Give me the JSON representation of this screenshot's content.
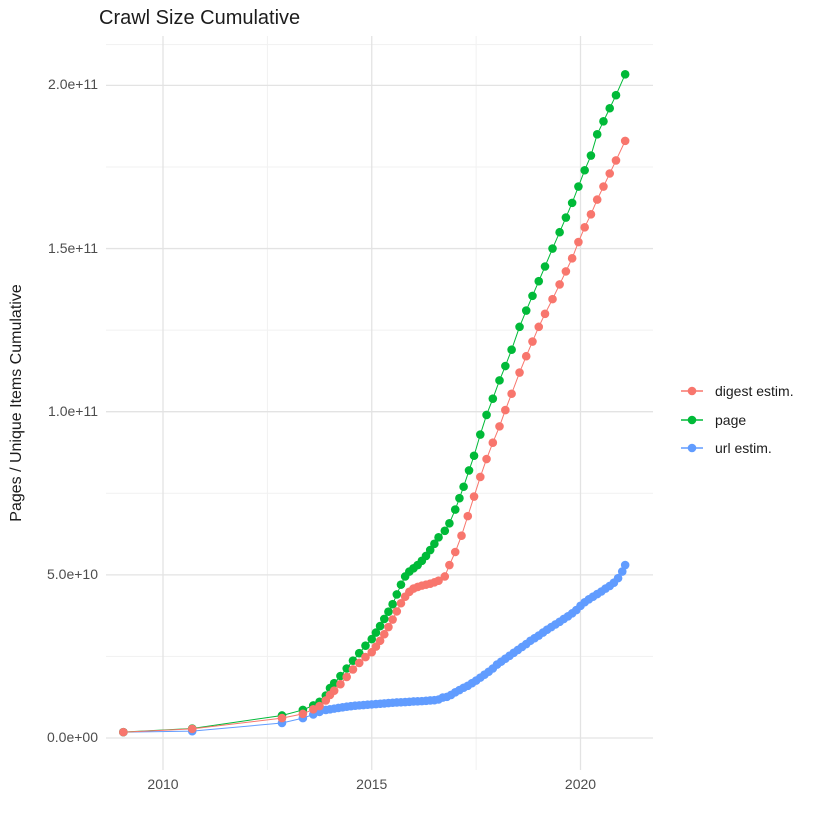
{
  "title": "Crawl Size Cumulative",
  "y_axis_title": "Pages / Unique Items Cumulative",
  "axes": {
    "x": {
      "major_ticks": [
        {
          "value": 2010,
          "label": "2010"
        },
        {
          "value": 2015,
          "label": "2015"
        },
        {
          "value": 2020,
          "label": "2020"
        }
      ],
      "minor_ticks": [
        2012.5,
        2017.5
      ]
    },
    "y": {
      "major_ticks": [
        {
          "value": 0,
          "label": "0.0e+00"
        },
        {
          "value": 50,
          "label": "5.0e+10"
        },
        {
          "value": 100,
          "label": "1.0e+11"
        },
        {
          "value": 150,
          "label": "1.5e+11"
        },
        {
          "value": 200,
          "label": "2.0e+11"
        }
      ],
      "minor_ticks": [
        25,
        75,
        125,
        175,
        212.5
      ]
    }
  },
  "legend": {
    "position": "right",
    "items": [
      "digest estim.",
      "page",
      "url estim."
    ]
  },
  "chart_data": {
    "type": "scatter",
    "title": "Crawl Size Cumulative",
    "xlabel": "",
    "ylabel": "Pages / Unique Items Cumulative",
    "x_unit": "year",
    "y_unit": "items (billions, 1e9)",
    "xlim": [
      2008.5,
      2021.7
    ],
    "ylim": [
      0,
      215
    ],
    "grid": true,
    "series": [
      {
        "id": "digest-estim",
        "name": "digest estim.",
        "color": "#F8766D",
        "points": [
          [
            2009.05,
            1.8
          ],
          [
            2010.7,
            2.8
          ],
          [
            2012.85,
            6.1
          ],
          [
            2013.35,
            7.4
          ],
          [
            2013.6,
            8.8
          ],
          [
            2013.75,
            9.8
          ],
          [
            2013.9,
            11.5
          ],
          [
            2014.0,
            13.2
          ],
          [
            2014.1,
            14.5
          ],
          [
            2014.25,
            16.5
          ],
          [
            2014.4,
            18.7
          ],
          [
            2014.55,
            21
          ],
          [
            2014.7,
            23
          ],
          [
            2014.85,
            24.8
          ],
          [
            2015.0,
            26.3
          ],
          [
            2015.1,
            28
          ],
          [
            2015.2,
            29.8
          ],
          [
            2015.3,
            31.8
          ],
          [
            2015.4,
            34
          ],
          [
            2015.5,
            36.3
          ],
          [
            2015.6,
            38.8
          ],
          [
            2015.7,
            41.3
          ],
          [
            2015.8,
            43.3
          ],
          [
            2015.9,
            44.8
          ],
          [
            2016.0,
            45.8
          ],
          [
            2016.1,
            46.3
          ],
          [
            2016.2,
            46.7
          ],
          [
            2016.3,
            47
          ],
          [
            2016.4,
            47.3
          ],
          [
            2016.5,
            47.7
          ],
          [
            2016.6,
            48.2
          ],
          [
            2016.75,
            49.5
          ],
          [
            2016.86,
            53
          ],
          [
            2017.0,
            57
          ],
          [
            2017.15,
            62
          ],
          [
            2017.3,
            68
          ],
          [
            2017.45,
            74
          ],
          [
            2017.6,
            80
          ],
          [
            2017.75,
            85.5
          ],
          [
            2017.9,
            90.5
          ],
          [
            2018.06,
            95.5
          ],
          [
            2018.2,
            100.5
          ],
          [
            2018.35,
            105.5
          ],
          [
            2018.54,
            112
          ],
          [
            2018.7,
            117
          ],
          [
            2018.85,
            121.5
          ],
          [
            2019.0,
            126
          ],
          [
            2019.15,
            130
          ],
          [
            2019.33,
            134.5
          ],
          [
            2019.5,
            139
          ],
          [
            2019.65,
            143
          ],
          [
            2019.8,
            147
          ],
          [
            2019.95,
            152
          ],
          [
            2020.1,
            156.5
          ],
          [
            2020.25,
            160.5
          ],
          [
            2020.4,
            165
          ],
          [
            2020.55,
            169
          ],
          [
            2020.7,
            173
          ],
          [
            2020.85,
            177
          ],
          [
            2021.07,
            183
          ]
        ]
      },
      {
        "id": "page",
        "name": "page",
        "color": "#00BA38",
        "points": [
          [
            2009.05,
            1.8
          ],
          [
            2010.7,
            2.9
          ],
          [
            2012.85,
            6.9
          ],
          [
            2013.35,
            8.6
          ],
          [
            2013.6,
            10
          ],
          [
            2013.75,
            11.1
          ],
          [
            2013.9,
            13
          ],
          [
            2014.0,
            15.3
          ],
          [
            2014.1,
            16.8
          ],
          [
            2014.25,
            19
          ],
          [
            2014.4,
            21.3
          ],
          [
            2014.55,
            23.7
          ],
          [
            2014.7,
            26
          ],
          [
            2014.85,
            28.3
          ],
          [
            2015.0,
            30.3
          ],
          [
            2015.1,
            32.3
          ],
          [
            2015.2,
            34.3
          ],
          [
            2015.3,
            36.5
          ],
          [
            2015.4,
            38.7
          ],
          [
            2015.5,
            41
          ],
          [
            2015.6,
            44
          ],
          [
            2015.7,
            47
          ],
          [
            2015.8,
            49.5
          ],
          [
            2015.9,
            51
          ],
          [
            2016.0,
            52
          ],
          [
            2016.1,
            53
          ],
          [
            2016.2,
            54.3
          ],
          [
            2016.3,
            55.8
          ],
          [
            2016.4,
            57.6
          ],
          [
            2016.5,
            59.5
          ],
          [
            2016.6,
            61.5
          ],
          [
            2016.75,
            63.5
          ],
          [
            2016.86,
            65.8
          ],
          [
            2017.0,
            70
          ],
          [
            2017.1,
            73.5
          ],
          [
            2017.2,
            77
          ],
          [
            2017.33,
            82
          ],
          [
            2017.45,
            86.5
          ],
          [
            2017.6,
            93
          ],
          [
            2017.75,
            99
          ],
          [
            2017.9,
            104
          ],
          [
            2018.06,
            109.6
          ],
          [
            2018.2,
            114
          ],
          [
            2018.35,
            119
          ],
          [
            2018.54,
            126
          ],
          [
            2018.7,
            131
          ],
          [
            2018.85,
            135.5
          ],
          [
            2019.0,
            140
          ],
          [
            2019.15,
            144.5
          ],
          [
            2019.33,
            150
          ],
          [
            2019.5,
            155
          ],
          [
            2019.65,
            159.5
          ],
          [
            2019.8,
            164
          ],
          [
            2019.95,
            169
          ],
          [
            2020.1,
            174
          ],
          [
            2020.25,
            178.5
          ],
          [
            2020.4,
            185
          ],
          [
            2020.55,
            189
          ],
          [
            2020.7,
            193
          ],
          [
            2020.85,
            197
          ],
          [
            2021.07,
            203.4
          ]
        ]
      },
      {
        "id": "url-estim",
        "name": "url estim.",
        "color": "#619CFF",
        "points": [
          [
            2009.05,
            1.8
          ],
          [
            2010.7,
            2.1
          ],
          [
            2012.85,
            4.6
          ],
          [
            2013.35,
            6.1
          ],
          [
            2013.6,
            7.2
          ],
          [
            2013.75,
            8
          ],
          [
            2013.9,
            8.6
          ],
          [
            2014.0,
            8.8
          ],
          [
            2014.1,
            9.0
          ],
          [
            2014.2,
            9.2
          ],
          [
            2014.3,
            9.4
          ],
          [
            2014.4,
            9.6
          ],
          [
            2014.5,
            9.75
          ],
          [
            2014.6,
            9.9
          ],
          [
            2014.7,
            10.0
          ],
          [
            2014.8,
            10.1
          ],
          [
            2014.9,
            10.2
          ],
          [
            2015.0,
            10.3
          ],
          [
            2015.1,
            10.4
          ],
          [
            2015.2,
            10.5
          ],
          [
            2015.3,
            10.6
          ],
          [
            2015.4,
            10.7
          ],
          [
            2015.5,
            10.8
          ],
          [
            2015.6,
            10.9
          ],
          [
            2015.7,
            10.95
          ],
          [
            2015.8,
            11.0
          ],
          [
            2015.9,
            11.1
          ],
          [
            2016.0,
            11.2
          ],
          [
            2016.1,
            11.25
          ],
          [
            2016.2,
            11.3
          ],
          [
            2016.3,
            11.4
          ],
          [
            2016.4,
            11.5
          ],
          [
            2016.5,
            11.6
          ],
          [
            2016.6,
            11.8
          ],
          [
            2016.7,
            12.4
          ],
          [
            2016.8,
            12.6
          ],
          [
            2016.9,
            13.2
          ],
          [
            2017.0,
            14
          ],
          [
            2017.1,
            14.7
          ],
          [
            2017.2,
            15.4
          ],
          [
            2017.3,
            16
          ],
          [
            2017.4,
            16.8
          ],
          [
            2017.5,
            17.6
          ],
          [
            2017.6,
            18.5
          ],
          [
            2017.7,
            19.4
          ],
          [
            2017.8,
            20.3
          ],
          [
            2017.9,
            21.3
          ],
          [
            2018.0,
            22.5
          ],
          [
            2018.1,
            23.4
          ],
          [
            2018.2,
            24.3
          ],
          [
            2018.3,
            25.2
          ],
          [
            2018.4,
            26.1
          ],
          [
            2018.5,
            27
          ],
          [
            2018.6,
            27.9
          ],
          [
            2018.7,
            28.8
          ],
          [
            2018.8,
            29.8
          ],
          [
            2018.9,
            30.6
          ],
          [
            2019.0,
            31.4
          ],
          [
            2019.1,
            32.3
          ],
          [
            2019.2,
            33.2
          ],
          [
            2019.3,
            34
          ],
          [
            2019.4,
            34.8
          ],
          [
            2019.5,
            35.6
          ],
          [
            2019.6,
            36.5
          ],
          [
            2019.7,
            37.3
          ],
          [
            2019.8,
            38.2
          ],
          [
            2019.9,
            39.2
          ],
          [
            2020.0,
            40.5
          ],
          [
            2020.1,
            41.6
          ],
          [
            2020.2,
            42.5
          ],
          [
            2020.3,
            43.3
          ],
          [
            2020.4,
            44.1
          ],
          [
            2020.5,
            44.9
          ],
          [
            2020.6,
            45.8
          ],
          [
            2020.7,
            46.6
          ],
          [
            2020.8,
            47.6
          ],
          [
            2020.9,
            49
          ],
          [
            2021.0,
            51
          ],
          [
            2021.07,
            53
          ]
        ]
      }
    ]
  }
}
